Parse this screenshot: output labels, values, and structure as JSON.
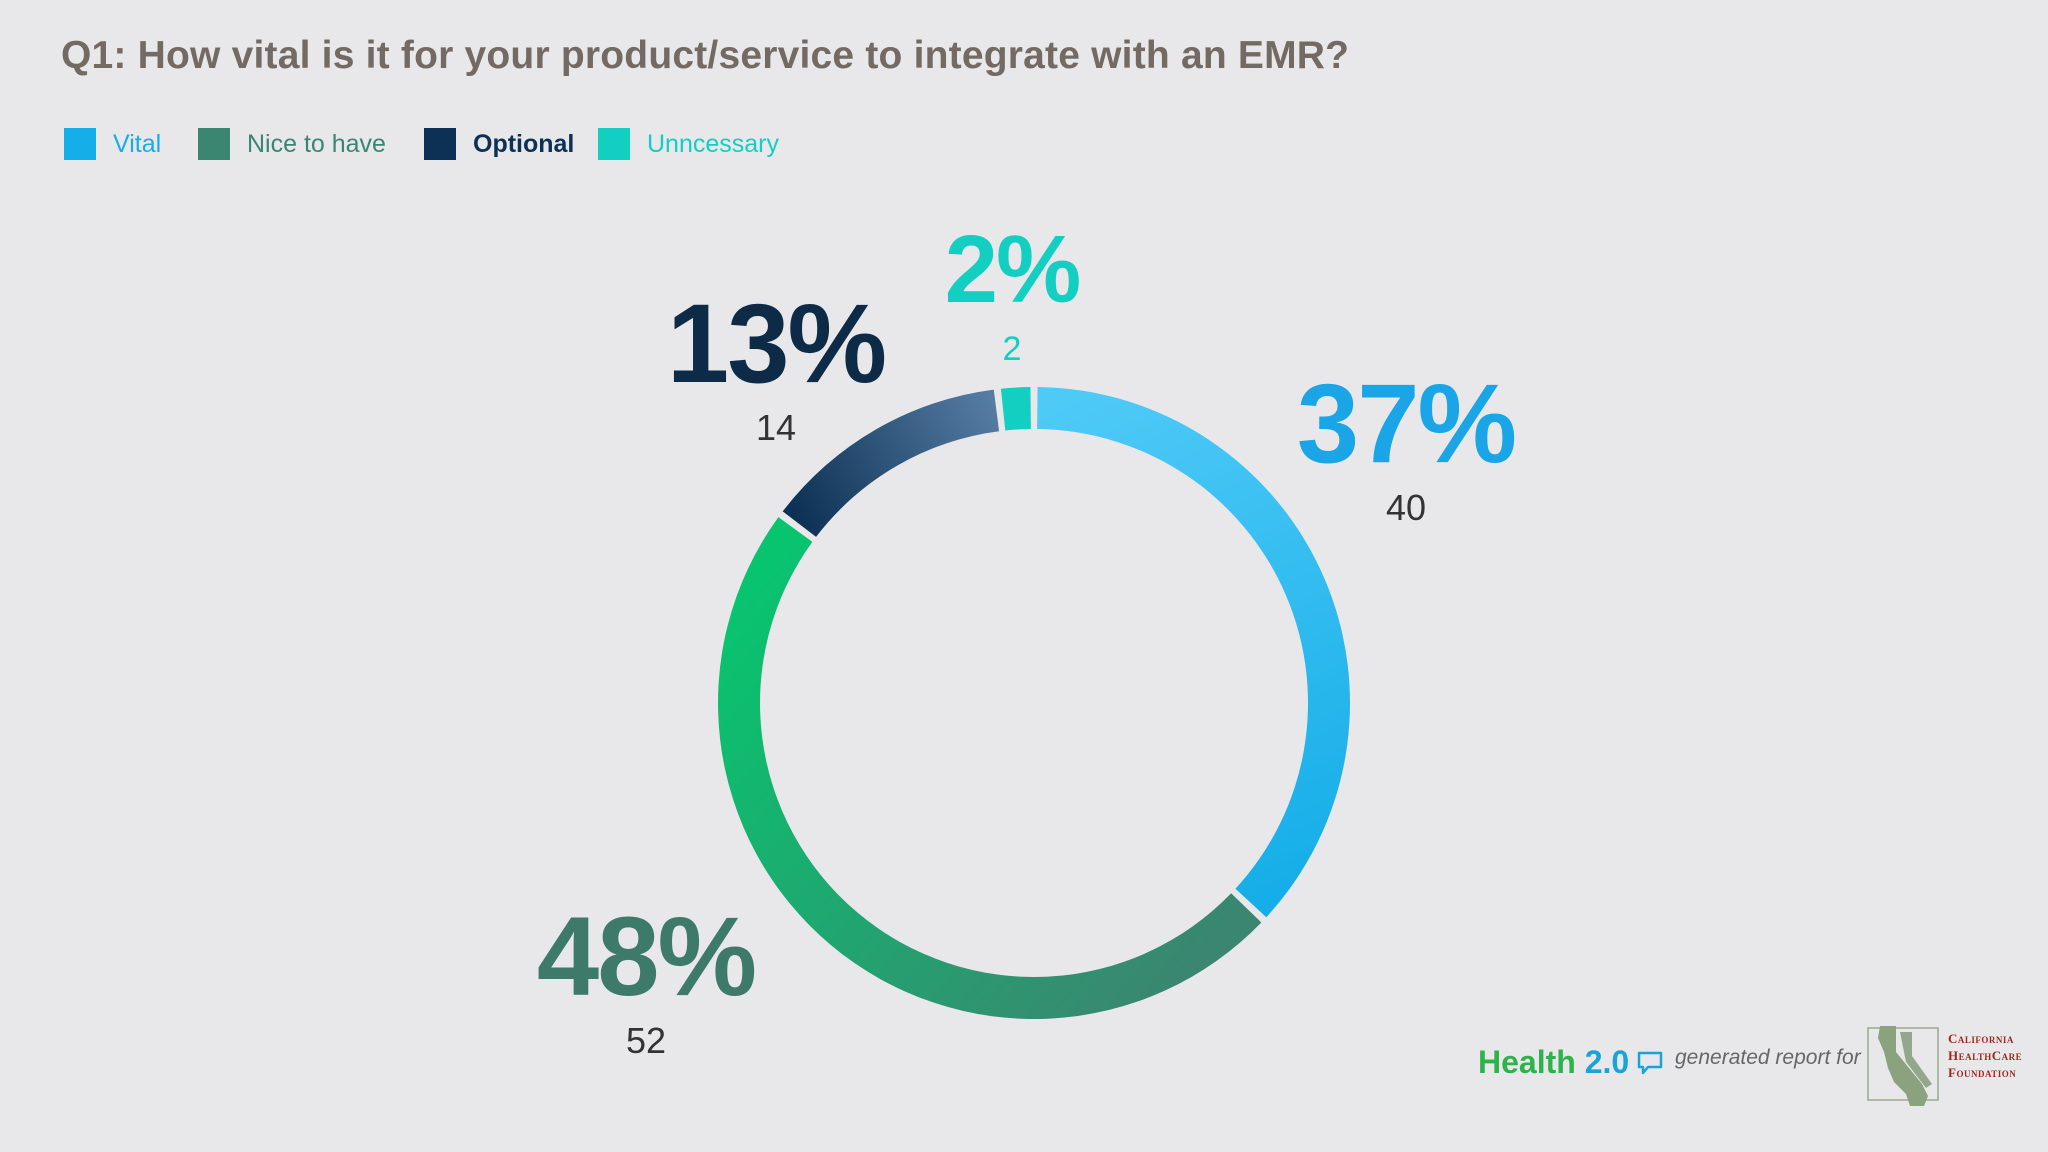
{
  "title": "Q1: How vital is it for your product/service to integrate with an EMR?",
  "legend": [
    {
      "label": "Vital",
      "color": "#16aee8"
    },
    {
      "label": "Nice to have",
      "color": "#3a8670"
    },
    {
      "label": "Optional",
      "color": "#0d3154"
    },
    {
      "label": "Unncessary",
      "color": "#12cfc2"
    }
  ],
  "chart_data": {
    "type": "pie",
    "style": "donut",
    "title": "Q1: How vital is it for your product/service to integrate with an EMR?",
    "categories": [
      "Vital",
      "Nice to have",
      "Optional",
      "Unncessary"
    ],
    "values": [
      40,
      52,
      14,
      2
    ],
    "percent_labels": [
      "37%",
      "48%",
      "13%",
      "2%"
    ],
    "count_labels": [
      "40",
      "52",
      "14",
      "2"
    ],
    "colors": [
      "#16aee8",
      "#3a8670",
      "#0d3154",
      "#12cfc2"
    ],
    "gradient_ends": [
      "#4fcaf7",
      "#08c46f",
      "#557ca3",
      "#12cfc2"
    ],
    "percent_label_colors": [
      "#1aa6e6",
      "#3d7a6a",
      "#0d2b47",
      "#12cfc2"
    ],
    "count_label_colors": [
      "#333333",
      "#333333",
      "#333333",
      "#12cfc2"
    ],
    "legend_position": "top-left"
  },
  "footer": {
    "brand_part1": "Health",
    "brand_part2": "2.0",
    "generated_text": "generated report for",
    "org_line1": "California",
    "org_line2": "HealthCare",
    "org_line3": "Foundation"
  }
}
